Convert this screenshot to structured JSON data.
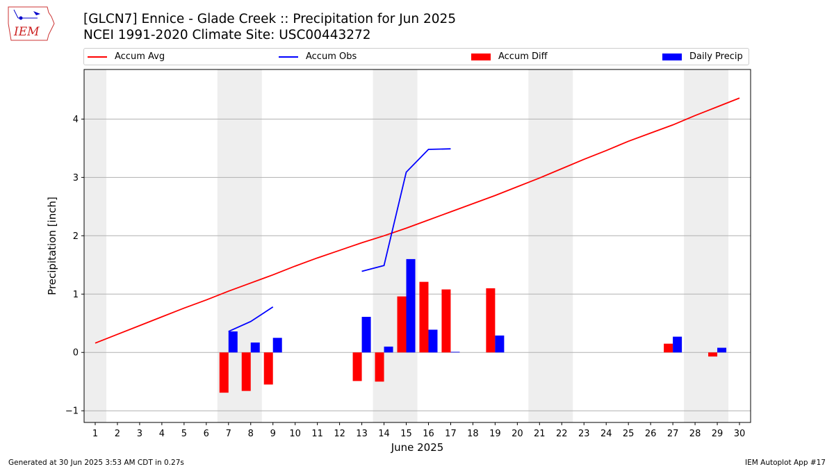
{
  "header": {
    "logo_text": "IEM",
    "title_line1": "[GLCN7] Ennice - Glade Creek :: Precipitation for Jun 2025",
    "title_line2": "NCEI 1991-2020 Climate Site: USC00443272"
  },
  "footer": {
    "generated": "Generated at 30 Jun 2025 3:53 AM CDT in 0.27s",
    "app": "IEM Autoplot App #17"
  },
  "colors": {
    "avg": "#ff0000",
    "obs": "#0000ff",
    "diff": "#ff0000",
    "daily": "#0000ff",
    "weekend_band": "#eeeeee",
    "grid": "#b0b0b0"
  },
  "chart_data": {
    "type": "bar",
    "xlabel": "June 2025",
    "ylabel": "Precipitation [inch]",
    "xlim": [
      0.5,
      30.5
    ],
    "ylim": [
      -1.2,
      4.85
    ],
    "days": [
      1,
      2,
      3,
      4,
      5,
      6,
      7,
      8,
      9,
      10,
      11,
      12,
      13,
      14,
      15,
      16,
      17,
      18,
      19,
      20,
      21,
      22,
      23,
      24,
      25,
      26,
      27,
      28,
      29,
      30
    ],
    "yticks": [
      -1,
      0,
      1,
      2,
      3,
      4
    ],
    "grid": true,
    "legend": {
      "placement": "top",
      "entries": [
        "Accum Avg",
        "Accum Obs",
        "Accum Diff",
        "Daily Precip"
      ]
    },
    "shaded_day_ranges": [
      [
        0.5,
        1.5
      ],
      [
        6.5,
        8.5
      ],
      [
        13.5,
        15.5
      ],
      [
        20.5,
        22.5
      ],
      [
        27.5,
        29.5
      ]
    ],
    "accum_avg": [
      0.16,
      0.31,
      0.46,
      0.61,
      0.76,
      0.9,
      1.05,
      1.19,
      1.33,
      1.48,
      1.62,
      1.75,
      1.88,
      2.0,
      2.13,
      2.27,
      2.41,
      2.55,
      2.69,
      2.84,
      2.99,
      3.15,
      3.31,
      3.46,
      3.62,
      3.76,
      3.9,
      4.06,
      4.21,
      4.36
    ],
    "accum_obs_segments": [
      {
        "days": [
          7,
          8,
          9
        ],
        "values": [
          0.36,
          0.53,
          0.78
        ]
      },
      {
        "days": [
          13,
          14,
          15,
          16,
          17
        ],
        "values": [
          1.39,
          1.49,
          3.09,
          3.48,
          3.49
        ]
      }
    ],
    "series": [
      {
        "name": "Accum Diff",
        "days": [
          7,
          8,
          9,
          13,
          14,
          15,
          16,
          17,
          19,
          27,
          29
        ],
        "values": [
          -0.69,
          -0.66,
          -0.55,
          -0.49,
          -0.5,
          0.96,
          1.21,
          1.08,
          1.1,
          0.15,
          -0.07
        ]
      },
      {
        "name": "Daily Precip",
        "days": [
          7,
          8,
          9,
          13,
          14,
          15,
          16,
          17,
          19,
          27,
          29
        ],
        "values": [
          0.36,
          0.17,
          0.25,
          0.61,
          0.1,
          1.6,
          0.39,
          0.01,
          0.29,
          0.27,
          0.08
        ]
      }
    ]
  }
}
